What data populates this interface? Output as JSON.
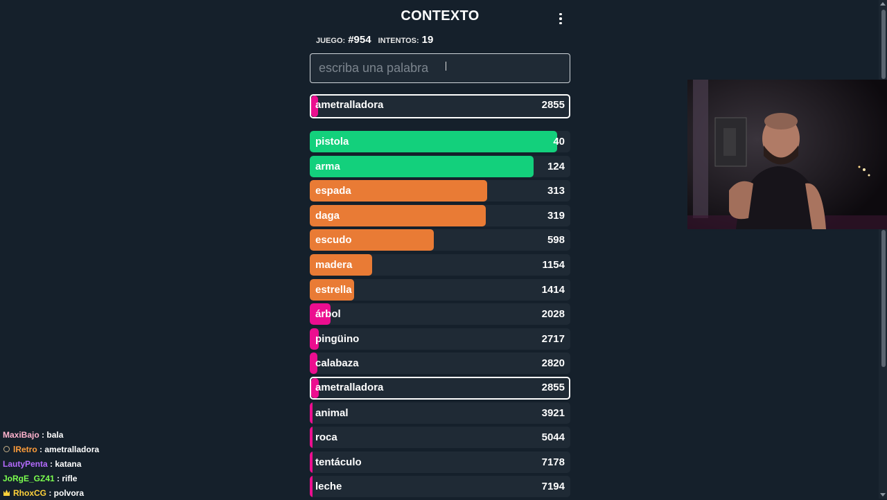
{
  "app": {
    "title": "CONTEXTO"
  },
  "stats": {
    "game_label": "JUEGO:",
    "game_value": "#954",
    "attempts_label": "INTENTOS:",
    "attempts_value": "19"
  },
  "input": {
    "placeholder": "escriba una palabra",
    "value": ""
  },
  "colors": {
    "green": "#13d07c",
    "orange": "#e97b35",
    "pink": "#ec0e8f",
    "row_bg": "#1f2a35",
    "page_bg": "#15202b"
  },
  "last_guess": {
    "word": "ametralladora",
    "score": "2855",
    "fill": 0.03
  },
  "guesses": [
    {
      "word": "pistola",
      "score": "40",
      "color": "green",
      "fill": 0.95
    },
    {
      "word": "arma",
      "score": "124",
      "color": "green",
      "fill": 0.86
    },
    {
      "word": "espada",
      "score": "313",
      "color": "orange",
      "fill": 0.68
    },
    {
      "word": "daga",
      "score": "319",
      "color": "orange",
      "fill": 0.675
    },
    {
      "word": "escudo",
      "score": "598",
      "color": "orange",
      "fill": 0.475
    },
    {
      "word": "madera",
      "score": "1154",
      "color": "orange",
      "fill": 0.24
    },
    {
      "word": "estrella",
      "score": "1414",
      "color": "orange",
      "fill": 0.17
    },
    {
      "word": "árbol",
      "score": "2028",
      "color": "pink",
      "fill": 0.08
    },
    {
      "word": "pingüino",
      "score": "2717",
      "color": "pink",
      "fill": 0.035
    },
    {
      "word": "calabaza",
      "score": "2820",
      "color": "pink",
      "fill": 0.03
    },
    {
      "word": "ametralladora",
      "score": "2855",
      "color": "pink",
      "fill": 0.03,
      "current": true
    },
    {
      "word": "animal",
      "score": "3921",
      "color": "pink",
      "fill": 0.01
    },
    {
      "word": "roca",
      "score": "5044",
      "color": "pink",
      "fill": 0.01
    },
    {
      "word": "tentáculo",
      "score": "7178",
      "color": "pink",
      "fill": 0.01
    },
    {
      "word": "leche",
      "score": "7194",
      "color": "pink",
      "fill": 0.01
    }
  ],
  "chat": [
    {
      "user": "MaxiBajo",
      "sep": " : ",
      "msg": "bala",
      "color": "#ffb3ce",
      "badge": ""
    },
    {
      "user": "lRetro",
      "sep": " : ",
      "msg": "ametralladora",
      "color": "#ff9d3b",
      "badge": "round-badge-icon"
    },
    {
      "user": "LautyPenta",
      "sep": " : ",
      "msg": "katana",
      "color": "#b56bff",
      "badge": ""
    },
    {
      "user": "JoRgE_GZ41",
      "sep": " : ",
      "msg": "rifle",
      "color": "#7cff4f",
      "badge": ""
    },
    {
      "user": "RhoxCG",
      "sep": " : ",
      "msg": "polvora",
      "color": "#ffd23b",
      "badge": "crown-badge-icon"
    }
  ]
}
